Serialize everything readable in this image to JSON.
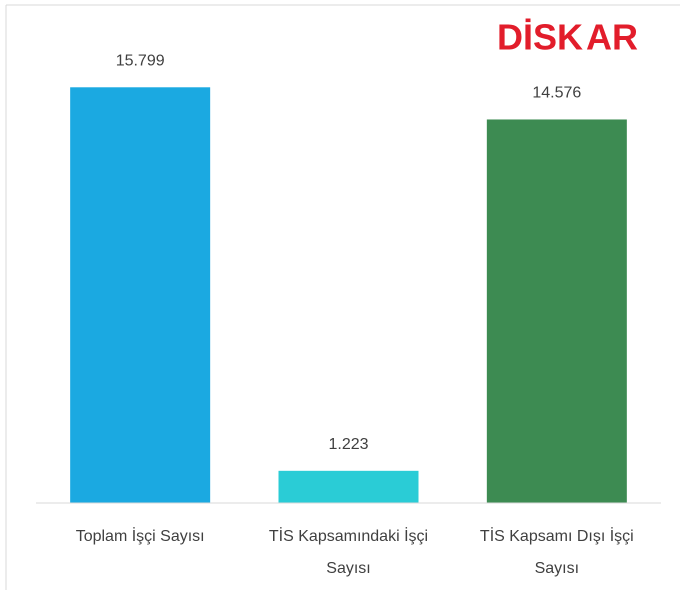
{
  "chart_data": {
    "type": "bar",
    "logo": [
      "DİSK",
      "AR"
    ],
    "categories": [
      "Toplam İşçi Sayısı",
      "TİS Kapsamındaki İşçi Sayısı",
      "TİS Kapsamı Dışı İşçi Sayısı"
    ],
    "values": [
      15799,
      1223,
      14576
    ],
    "value_labels": [
      "15.799",
      "1.223",
      "14.576"
    ],
    "colors": [
      "#1ba9e1",
      "#2accd6",
      "#3d8b52"
    ],
    "ylim": [
      0,
      16000
    ]
  }
}
